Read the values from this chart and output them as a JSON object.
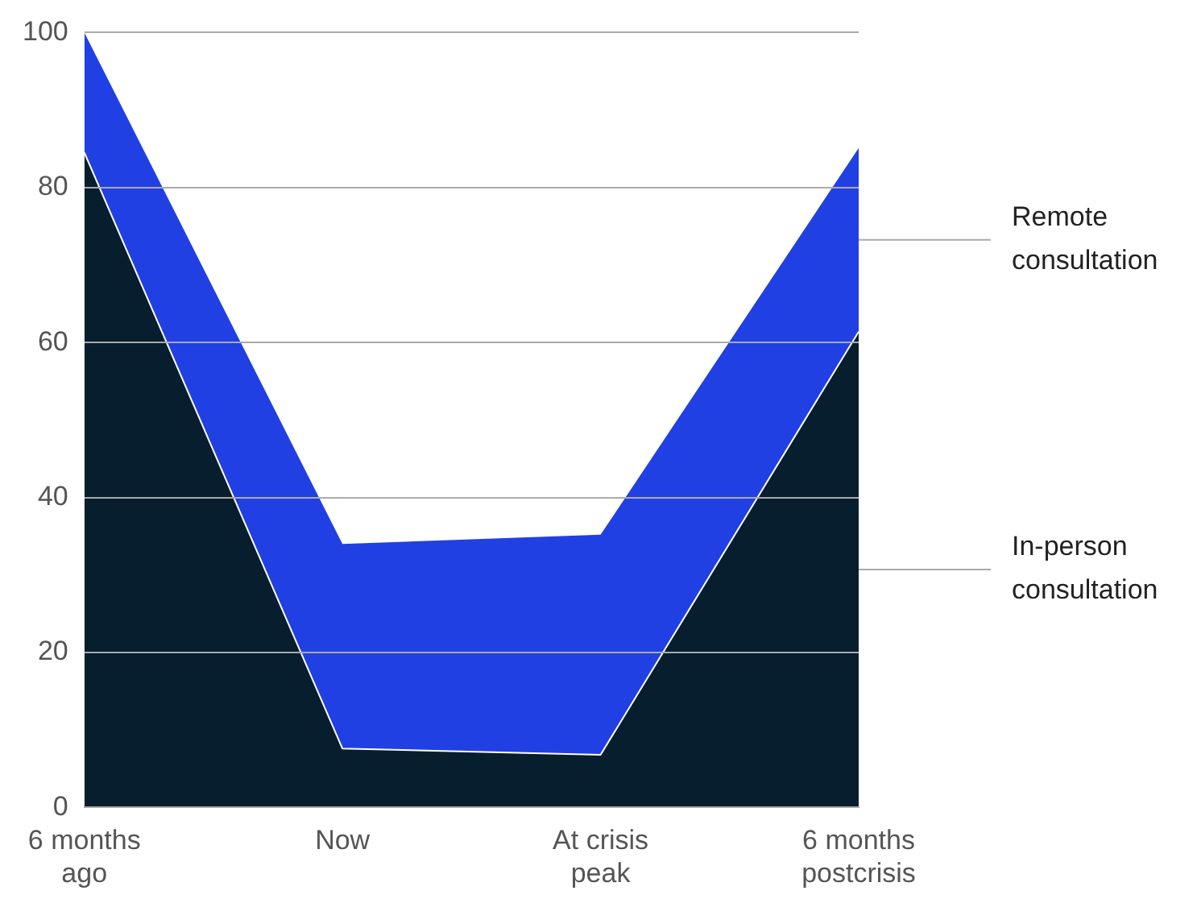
{
  "chart_data": {
    "type": "area",
    "stacked": true,
    "categories": [
      "6 months ago",
      "Now",
      "At crisis peak",
      "6 months postcrisis"
    ],
    "series": [
      {
        "name": "In-person consultation",
        "color": "#061e2e",
        "values": [
          84.5,
          7.6,
          6.8,
          61.4
        ]
      },
      {
        "name": "Remote consultation",
        "color": "#2140e3",
        "values": [
          15.5,
          26.4,
          28.4,
          23.7
        ]
      }
    ],
    "ylim": [
      0,
      100
    ],
    "yticks": [
      0,
      20,
      40,
      60,
      80,
      100
    ],
    "grid": "y",
    "legend": false
  }
}
